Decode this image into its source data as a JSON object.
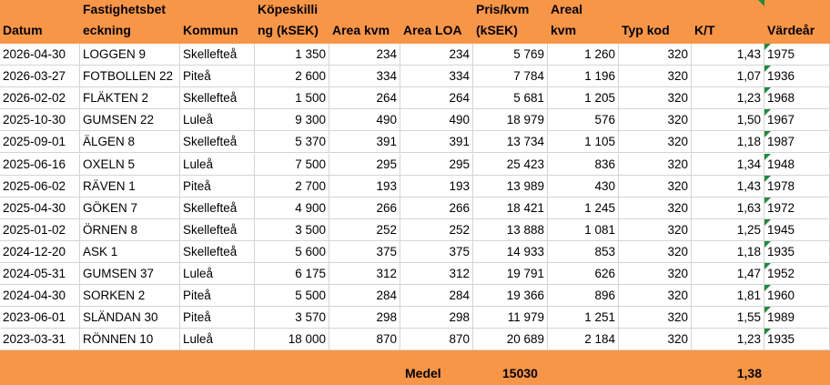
{
  "table": {
    "header": [
      [
        "Datum"
      ],
      [
        "Fastighetsbet",
        "eckning"
      ],
      [
        "Kommun"
      ],
      [
        "Köpeskilli",
        "ng (kSEK)"
      ],
      [
        "Area kvm"
      ],
      [
        "Area LOA"
      ],
      [
        "Pris/kvm",
        "(kSEK)"
      ],
      [
        "Areal",
        "kvm"
      ],
      [
        "Typ kod"
      ],
      [
        "K/T"
      ],
      [
        "Värdeår"
      ]
    ],
    "rows": [
      [
        "2026-04-30",
        "LOGGEN 9",
        "Skellefteå",
        "1 350",
        "234",
        "234",
        "5 769",
        "1 260",
        "320",
        "1,43",
        "1975"
      ],
      [
        "2026-03-27",
        "FOTBOLLEN 22",
        "Piteå",
        "2 600",
        "334",
        "334",
        "7 784",
        "1 196",
        "320",
        "1,07",
        "1936"
      ],
      [
        "2026-02-02",
        "FLÄKTEN 2",
        "Skellefteå",
        "1 500",
        "264",
        "264",
        "5 681",
        "1 205",
        "320",
        "1,23",
        "1968"
      ],
      [
        "2025-10-30",
        "GUMSEN 22",
        "Luleå",
        "9 300",
        "490",
        "490",
        "18 979",
        "576",
        "320",
        "1,50",
        "1967"
      ],
      [
        "2025-09-01",
        "ÄLGEN 8",
        "Skellefteå",
        "5 370",
        "391",
        "391",
        "13 734",
        "1 105",
        "320",
        "1,18",
        "1987"
      ],
      [
        "2025-06-16",
        "OXELN 5",
        "Luleå",
        "7 500",
        "295",
        "295",
        "25 423",
        "836",
        "320",
        "1,34",
        "1948"
      ],
      [
        "2025-06-02",
        "RÄVEN 1",
        "Piteå",
        "2 700",
        "193",
        "193",
        "13 989",
        "430",
        "320",
        "1,43",
        "1978"
      ],
      [
        "2025-04-30",
        "GÖKEN 7",
        "Skellefteå",
        "4 900",
        "266",
        "266",
        "18 421",
        "1 245",
        "320",
        "1,63",
        "1972"
      ],
      [
        "2025-01-02",
        "ÖRNEN 8",
        "Skellefteå",
        "3 500",
        "252",
        "252",
        "13 888",
        "1 081",
        "320",
        "1,25",
        "1945"
      ],
      [
        "2024-12-20",
        "ASK 1",
        "Skellefteå",
        "5 600",
        "375",
        "375",
        "14 933",
        "853",
        "320",
        "1,18",
        "1935"
      ],
      [
        "2024-05-31",
        "GUMSEN 37",
        "Luleå",
        "6 175",
        "312",
        "312",
        "19 791",
        "626",
        "320",
        "1,47",
        "1952"
      ],
      [
        "2024-04-30",
        "SORKEN 2",
        "Piteå",
        "5 500",
        "284",
        "284",
        "19 366",
        "896",
        "320",
        "1,81",
        "1960"
      ],
      [
        "2023-06-01",
        "SLÄNDAN 30",
        "Piteå",
        "3 570",
        "298",
        "298",
        "11 979",
        "1 251",
        "320",
        "1,55",
        "1989"
      ],
      [
        "2023-03-31",
        "RÖNNEN 10",
        "Luleå",
        "18 000",
        "870",
        "870",
        "20 689",
        "2 184",
        "320",
        "1,23",
        "1935"
      ]
    ],
    "footer": {
      "label": "Medel",
      "price": "15030",
      "kt": "1,38"
    }
  }
}
